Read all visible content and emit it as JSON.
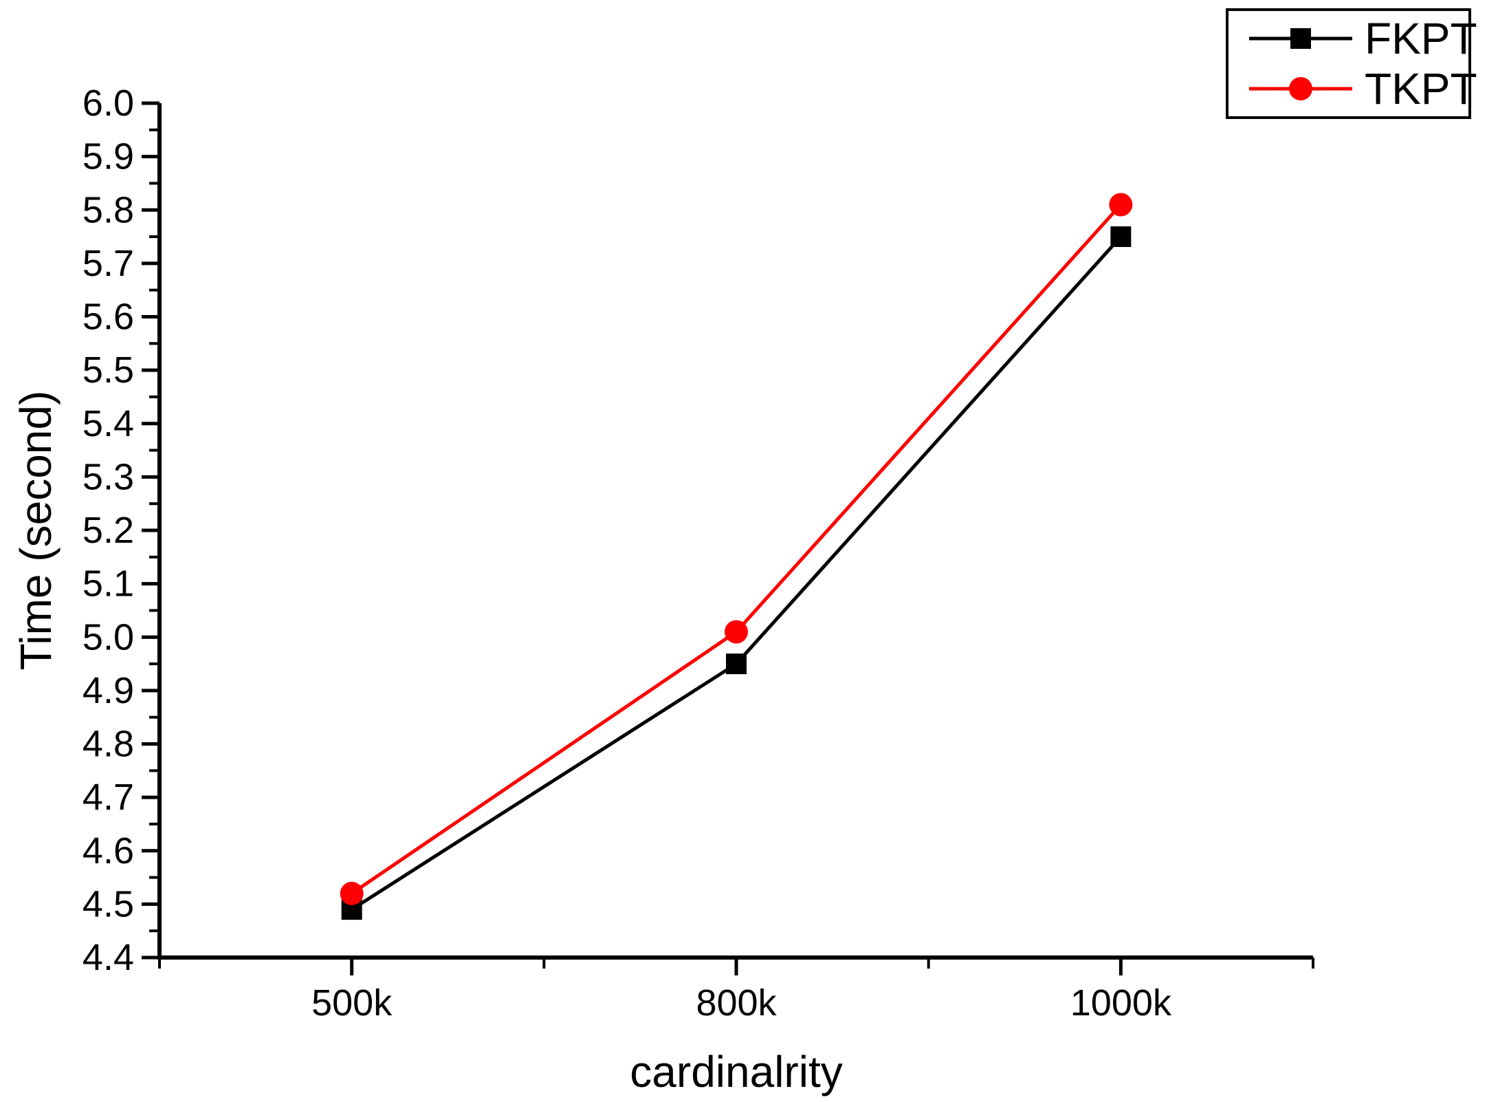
{
  "chart_data": {
    "type": "line",
    "title": "",
    "xlabel": "cardinalrity",
    "ylabel": "Time (second)",
    "categories": [
      "500k",
      "800k",
      "1000k"
    ],
    "series": [
      {
        "name": "FKPT",
        "values": [
          4.49,
          4.95,
          5.75
        ],
        "color": "#000000",
        "marker": "square"
      },
      {
        "name": "TKPT",
        "values": [
          4.52,
          5.01,
          5.81
        ],
        "color": "#ff0000",
        "marker": "circle"
      }
    ],
    "ylim": [
      4.4,
      6.0
    ],
    "y_tick_step": 0.1,
    "y_minor_tick_step": 0.05,
    "y_tick_labels": [
      "4.4",
      "4.5",
      "4.6",
      "4.7",
      "4.8",
      "4.9",
      "5.0",
      "5.1",
      "5.2",
      "5.3",
      "5.4",
      "5.5",
      "5.6",
      "5.7",
      "5.8",
      "5.9",
      "6.0"
    ],
    "grid": false,
    "legend_position": "top-right",
    "axis_color": "#000000",
    "background_color": "#ffffff"
  }
}
